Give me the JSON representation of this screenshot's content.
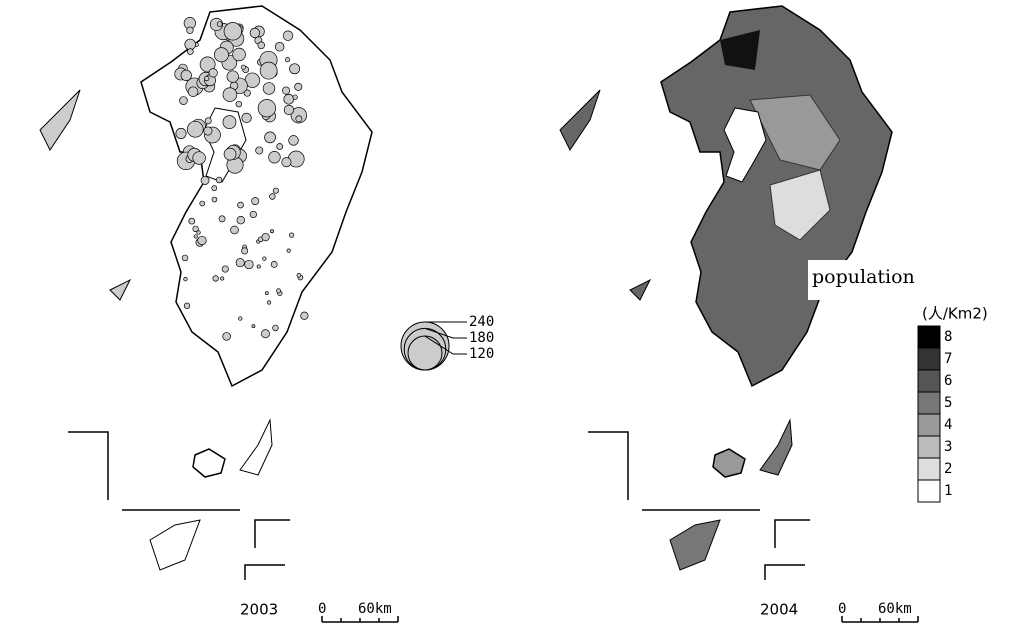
{
  "left_map": {
    "year": "2003",
    "scale_start": "0",
    "scale_end": "60km",
    "circle_legend": [
      {
        "value": 240,
        "label": "240"
      },
      {
        "value": 180,
        "label": "180"
      },
      {
        "value": 120,
        "label": "120"
      }
    ]
  },
  "right_map": {
    "year": "2004",
    "scale_start": "0",
    "scale_end": "60km",
    "label": "population",
    "unit": "(人/Km2)",
    "legend": [
      {
        "label": "8",
        "color": "#000000"
      },
      {
        "label": "7",
        "color": "#333333"
      },
      {
        "label": "6",
        "color": "#555555"
      },
      {
        "label": "5",
        "color": "#777777"
      },
      {
        "label": "4",
        "color": "#999999"
      },
      {
        "label": "3",
        "color": "#bbbbbb"
      },
      {
        "label": "2",
        "color": "#dddddd"
      },
      {
        "label": "1",
        "color": "#ffffff"
      }
    ]
  }
}
